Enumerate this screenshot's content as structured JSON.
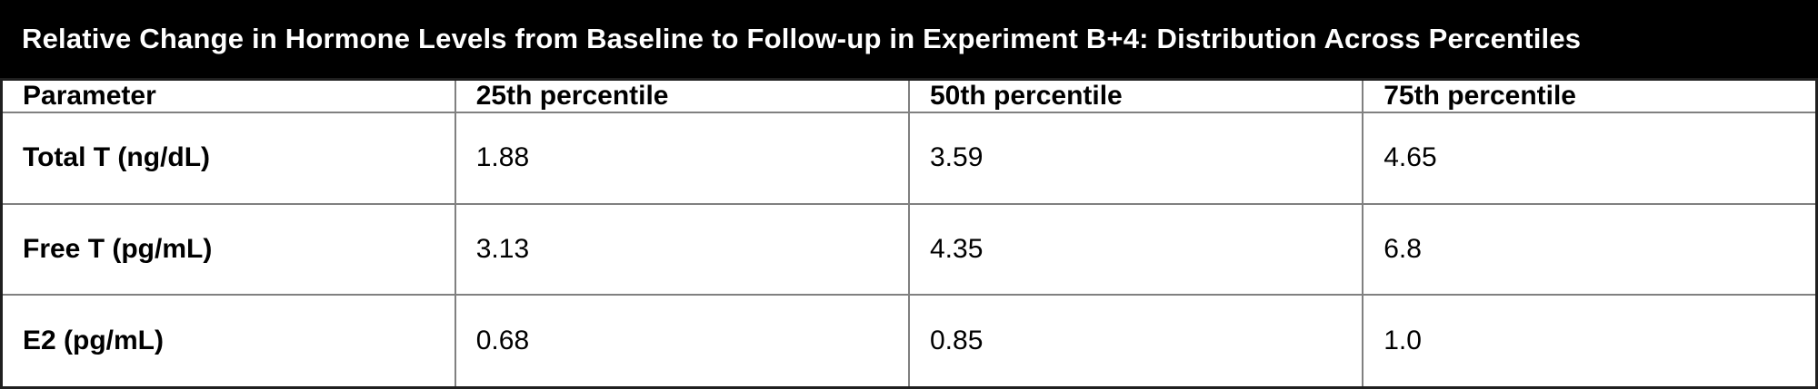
{
  "title": "Relative Change in Hormone Levels from Baseline to Follow-up in Experiment B+4: Distribution Across Percentiles",
  "colors": {
    "title_bar_bg": "#000000",
    "title_bar_text": "#ffffff",
    "cell_bg": "#ffffff",
    "cell_text": "#000000",
    "inner_border": "#808080",
    "outer_border": "#1f1f1f"
  },
  "table": {
    "headers": [
      "Parameter",
      "25th percentile",
      "50th percentile",
      "75th percentile"
    ],
    "rows": [
      {
        "parameter": "Total T (ng/dL)",
        "p25": "1.88",
        "p50": "3.59",
        "p75": "4.65"
      },
      {
        "parameter": "Free T (pg/mL)",
        "p25": "3.13",
        "p50": "4.35",
        "p75": "6.8"
      },
      {
        "parameter": "E2 (pg/mL)",
        "p25": "0.68",
        "p50": "0.85",
        "p75": "1.0"
      }
    ]
  },
  "chart_data": {
    "type": "table",
    "title": "Relative Change in Hormone Levels from Baseline to Follow-up in Experiment B+4: Distribution Across Percentiles",
    "columns": [
      "Parameter",
      "25th percentile",
      "50th percentile",
      "75th percentile"
    ],
    "rows": [
      [
        "Total T (ng/dL)",
        1.88,
        3.59,
        4.65
      ],
      [
        "Free T (pg/mL)",
        3.13,
        4.35,
        6.8
      ],
      [
        "E2 (pg/mL)",
        0.68,
        0.85,
        1.0
      ]
    ]
  }
}
